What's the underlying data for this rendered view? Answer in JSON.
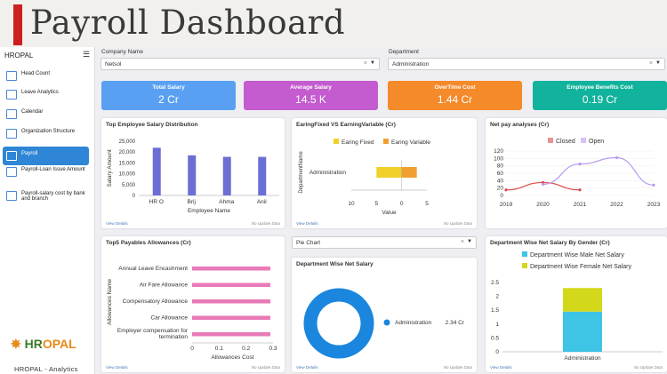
{
  "header": {
    "title": "Payroll Dashboard"
  },
  "sidebar": {
    "brand": "HROPAL",
    "items": [
      {
        "label": "Head Count",
        "icon": "people-icon"
      },
      {
        "label": "Leave Analytics",
        "icon": "leave-icon"
      },
      {
        "label": "Calendar",
        "icon": "calendar-icon"
      },
      {
        "label": "Organization Structure",
        "icon": "org-chart-icon"
      },
      {
        "label": "Payroll",
        "icon": "payroll-icon",
        "active": true
      },
      {
        "label": "Payroll-Loan Issue Amount",
        "icon": "loan-icon"
      },
      {
        "label": "Payroll-salary cost by bank and branch",
        "icon": "bank-icon"
      }
    ],
    "logo": {
      "main": "HR",
      "accent": "OPAL"
    },
    "footer": "HROPAL - Analytics"
  },
  "filters": {
    "company_label": "Company Name",
    "company_value": "Netsol",
    "department_label": "Department",
    "department_value": "Administration"
  },
  "kpis": [
    {
      "label": "Total Salary",
      "value": "2 Cr",
      "color": "#5aa0f2"
    },
    {
      "label": "Average Salary",
      "value": "14.5 K",
      "color": "#c45cd0"
    },
    {
      "label": "OverTime Cost",
      "value": "1.44 Cr",
      "color": "#f48a2a"
    },
    {
      "label": "Employee Benefits Cost",
      "value": "0.19 Cr",
      "color": "#12b39c"
    }
  ],
  "cards": {
    "view_details": "View Details",
    "no_update": "No Update Data",
    "pie_select": "Pie Chart"
  },
  "chart_data": [
    {
      "type": "bar",
      "title": "Top Employee Salary Distribution",
      "categories": [
        "HR O",
        "Brij",
        "Ahma",
        "Anil"
      ],
      "values": [
        22000,
        18500,
        17800,
        17800
      ],
      "xlabel": "Employee Name",
      "ylabel": "Salary Amount",
      "ylim": [
        0,
        25000
      ],
      "yticks": [
        "25,000",
        "20,000",
        "15,000",
        "10,000",
        "5,000",
        "0"
      ],
      "color": "#6b6fd4"
    },
    {
      "type": "bar",
      "title": "EaringFixed VS EarningVariable (Cr)",
      "orientation": "horizontal",
      "categories": [
        "Administration"
      ],
      "series": [
        {
          "name": "Earing Fixed",
          "values": [
            -5
          ],
          "color": "#f2d02a"
        },
        {
          "name": "Earing Variable",
          "values": [
            3
          ],
          "color": "#f0a030"
        }
      ],
      "xlabel": "Value",
      "ylabel": "DepartmentName",
      "xlim": [
        -10,
        5
      ],
      "xticks": [
        "10",
        "5",
        "0",
        "5"
      ]
    },
    {
      "type": "line",
      "title": "Net pay analyses (Cr)",
      "x": [
        2019,
        2020,
        2021,
        2022,
        2023
      ],
      "series": [
        {
          "name": "Closed",
          "points": [
            [
              2019,
              15
            ],
            [
              2020,
              35
            ],
            [
              2021,
              15
            ]
          ],
          "color": "#e04848"
        },
        {
          "name": "Open",
          "points": [
            [
              2020,
              30
            ],
            [
              2021,
              85
            ],
            [
              2022,
              102
            ],
            [
              2023,
              28
            ]
          ],
          "color": "#b89aee"
        }
      ],
      "ylim": [
        0,
        120
      ],
      "yticks": [
        "120",
        "100",
        "80",
        "60",
        "40",
        "20",
        "0"
      ]
    },
    {
      "type": "bar",
      "title": "Top5 Payables Allowances (Cr)",
      "orientation": "horizontal",
      "categories": [
        "Annual Leave Encashment",
        "Air Fare Allowance",
        "Compensatory Allowance",
        "Car Allowance",
        "Employer compensation for termination"
      ],
      "values": [
        0.29,
        0.29,
        0.29,
        0.29,
        0.29
      ],
      "xlabel": "Allowances Cost",
      "ylabel": "Allowances Name",
      "xlim": [
        0,
        0.3
      ],
      "xticks": [
        "0",
        "0.1",
        "0.2",
        "0.3"
      ],
      "color": "#e87ab8"
    },
    {
      "type": "pie",
      "title": "Department Wise Net Salary",
      "slices": [
        {
          "label": "Administration",
          "value": "2.34 Cr",
          "color": "#1a86dd"
        }
      ]
    },
    {
      "type": "bar",
      "title": "Department Wise Net Salary By Gender (Cr)",
      "categories": [
        "Administration"
      ],
      "series": [
        {
          "name": "Department Wise Male Net Salary",
          "values": [
            1.45
          ],
          "color": "#3ec4e4"
        },
        {
          "name": "Department Wise Female Net Salary",
          "values": [
            0.85
          ],
          "color": "#d4d81a"
        }
      ],
      "stacked": true,
      "ylim": [
        0,
        2.5
      ],
      "yticks": [
        "2.5",
        "2",
        "1.5",
        "1",
        "0.5",
        "0"
      ]
    }
  ]
}
